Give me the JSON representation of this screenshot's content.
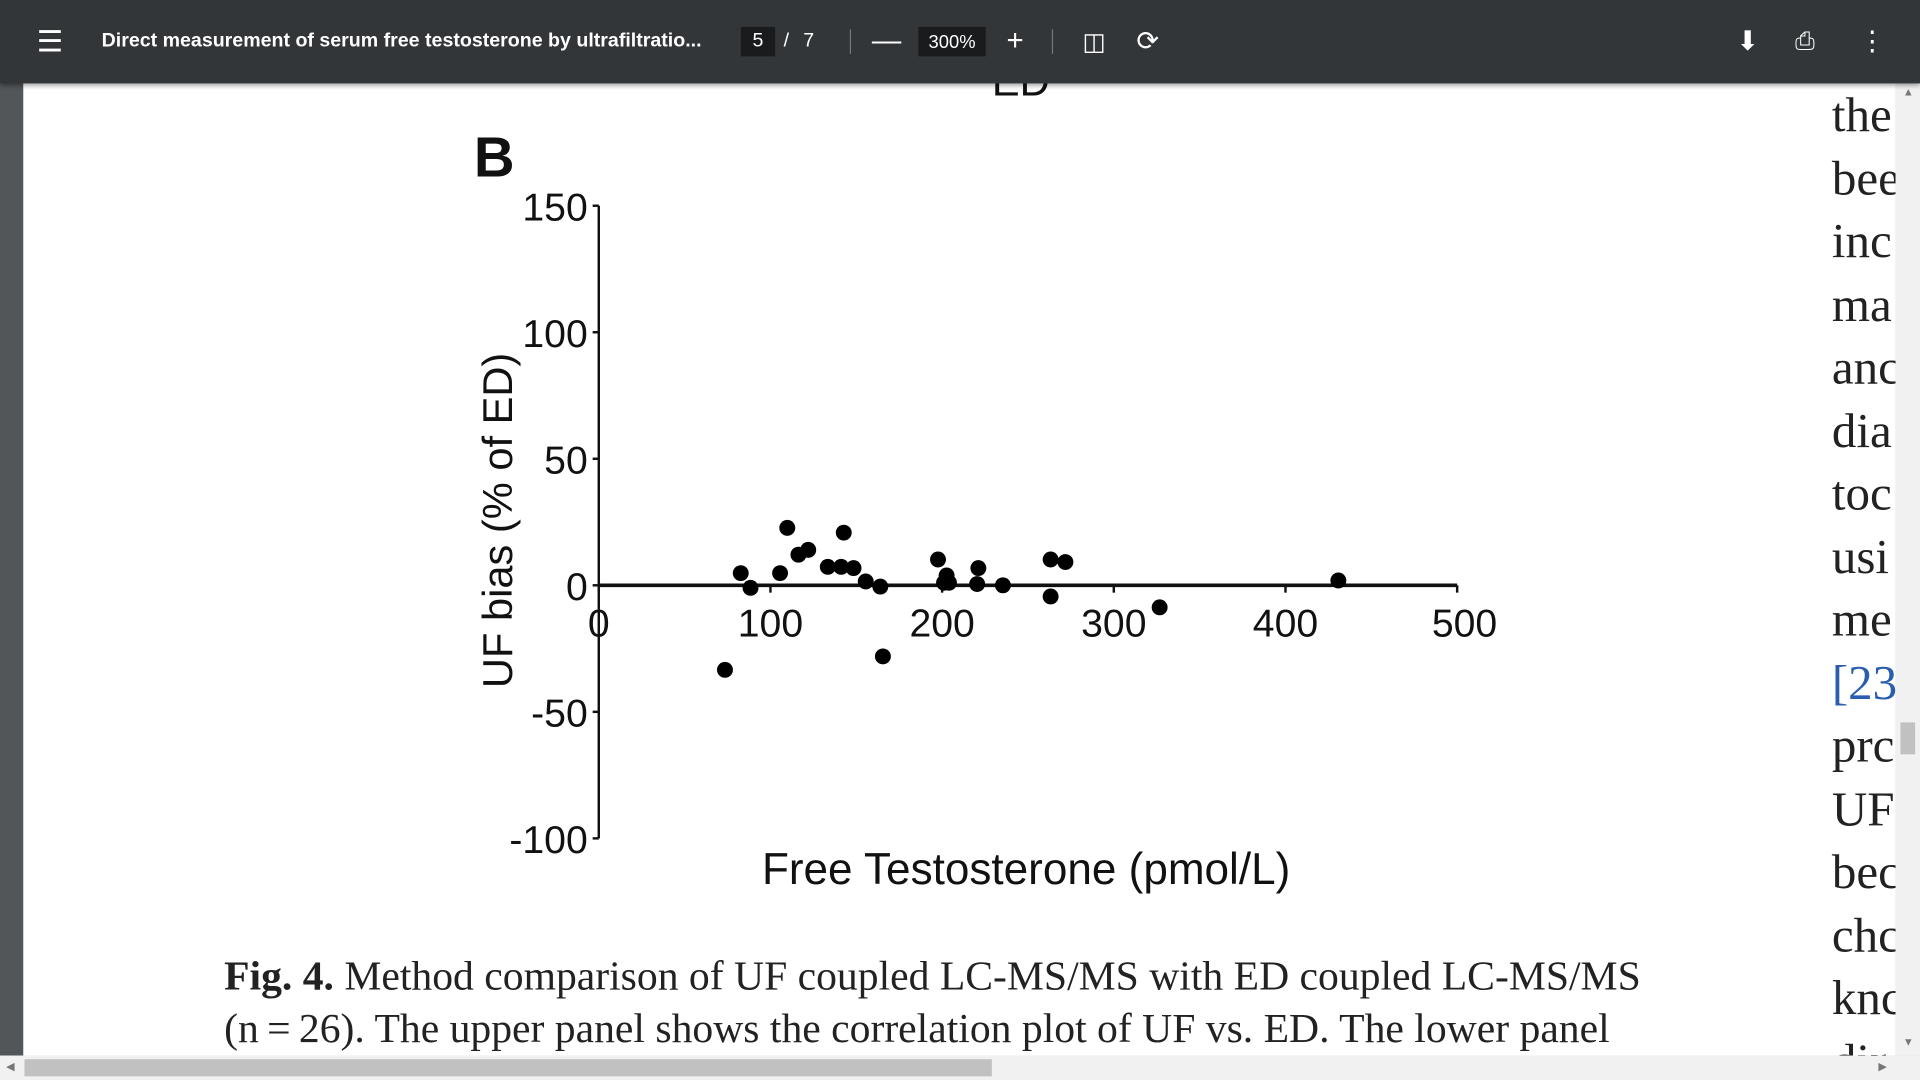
{
  "toolbar": {
    "menu_icon": "hamburger-icon",
    "title": "Direct measurement of serum free testosterone by ultrafiltratio...",
    "current_page": "5",
    "page_separator": "/",
    "total_pages": "7",
    "zoom_level": "300%",
    "zoom_out_label": "—",
    "zoom_in_label": "+",
    "icons": [
      "fit-page-icon",
      "rotate-icon",
      "download-icon",
      "print-icon",
      "more-vert-icon"
    ]
  },
  "document": {
    "top_cut_label": "ED",
    "caption_prefix": "Fig. 4.",
    "caption_line1": " Method comparison of UF coupled LC-MS/MS with ED coupled LC-MS/MS",
    "caption_line2": "(n = 26). The upper panel shows the correlation plot of UF vs. ED. The lower panel",
    "right_column_lines": [
      "the",
      "bee",
      "inc",
      "ma",
      "anc",
      "dia",
      "toc",
      "usi",
      "me",
      "[23",
      "prc",
      "UF",
      "bec",
      "chc",
      "knc",
      "dir"
    ]
  },
  "chart_data": {
    "type": "scatter",
    "panel_label": "B",
    "xlabel": "Free Testosterone (pmol/L)",
    "ylabel": "UF bias (% of ED)",
    "xlim": [
      0,
      500
    ],
    "ylim": [
      -100,
      150
    ],
    "xticks": [
      0,
      100,
      200,
      300,
      400,
      500
    ],
    "yticks": [
      150,
      100,
      50,
      0,
      -50,
      -100
    ],
    "x_axis_at_y": 0,
    "grid": false,
    "points": [
      [
        82.7,
        4.8
      ],
      [
        88.4,
        -1.0
      ],
      [
        73.5,
        -33.4
      ],
      [
        105.6,
        4.8
      ],
      [
        109.8,
        22.7
      ],
      [
        116.3,
        12.1
      ],
      [
        122,
        14.0
      ],
      [
        133.4,
        7.3
      ],
      [
        142.7,
        20.8
      ],
      [
        141.2,
        7.3
      ],
      [
        148.4,
        6.8
      ],
      [
        155.5,
        1.5
      ],
      [
        164,
        -0.5
      ],
      [
        165.5,
        -28.1
      ],
      [
        197.6,
        10.2
      ],
      [
        202.6,
        3.9
      ],
      [
        201.1,
        1.0
      ],
      [
        204,
        1.0
      ],
      [
        221.1,
        6.8
      ],
      [
        220.4,
        0.5
      ],
      [
        235.4,
        0
      ],
      [
        263.2,
        10.2
      ],
      [
        271.8,
        9.2
      ],
      [
        263.2,
        -4.4
      ],
      [
        326.7,
        -8.7
      ],
      [
        430.8,
        1.9
      ]
    ],
    "marker_color": "#000000"
  }
}
